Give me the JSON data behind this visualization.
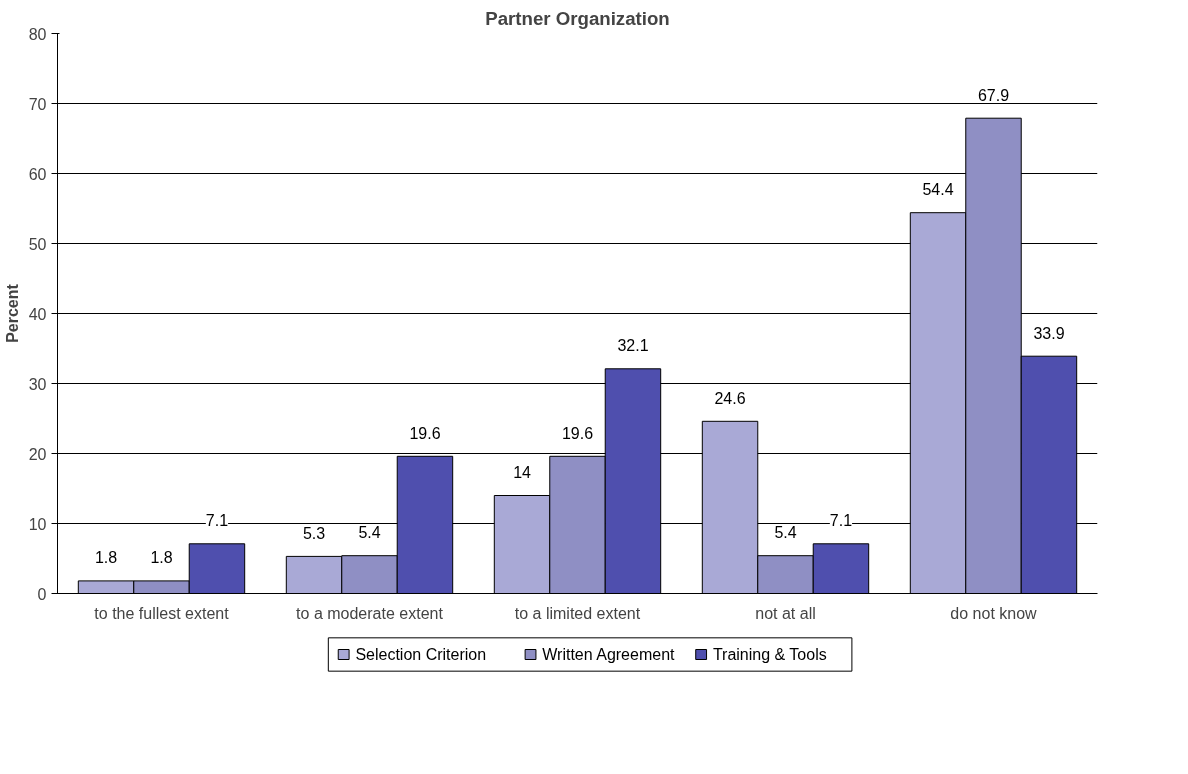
{
  "chart_data": {
    "type": "bar",
    "title": "Partner Organization",
    "ylabel": "Percent",
    "categories": [
      "to the fullest extent",
      "to a moderate extent",
      "to a limited extent",
      "not at all",
      "do not know"
    ],
    "series": [
      {
        "name": "Selection Criterion",
        "color": "#a9a9d6",
        "values": [
          1.8,
          5.3,
          14,
          24.6,
          54.4
        ]
      },
      {
        "name": "Written Agreement",
        "color": "#8f8fc4",
        "values": [
          1.8,
          5.4,
          19.6,
          5.4,
          67.9
        ]
      },
      {
        "name": "Training & Tools",
        "color": "#4f4fae",
        "values": [
          7.1,
          19.6,
          32.1,
          7.1,
          33.9
        ]
      }
    ],
    "ylim": [
      0,
      80
    ],
    "yticks": [
      0,
      10,
      20,
      30,
      40,
      50,
      60,
      70,
      80
    ],
    "grid": "y",
    "legend": "bottom",
    "data_labels": true
  }
}
